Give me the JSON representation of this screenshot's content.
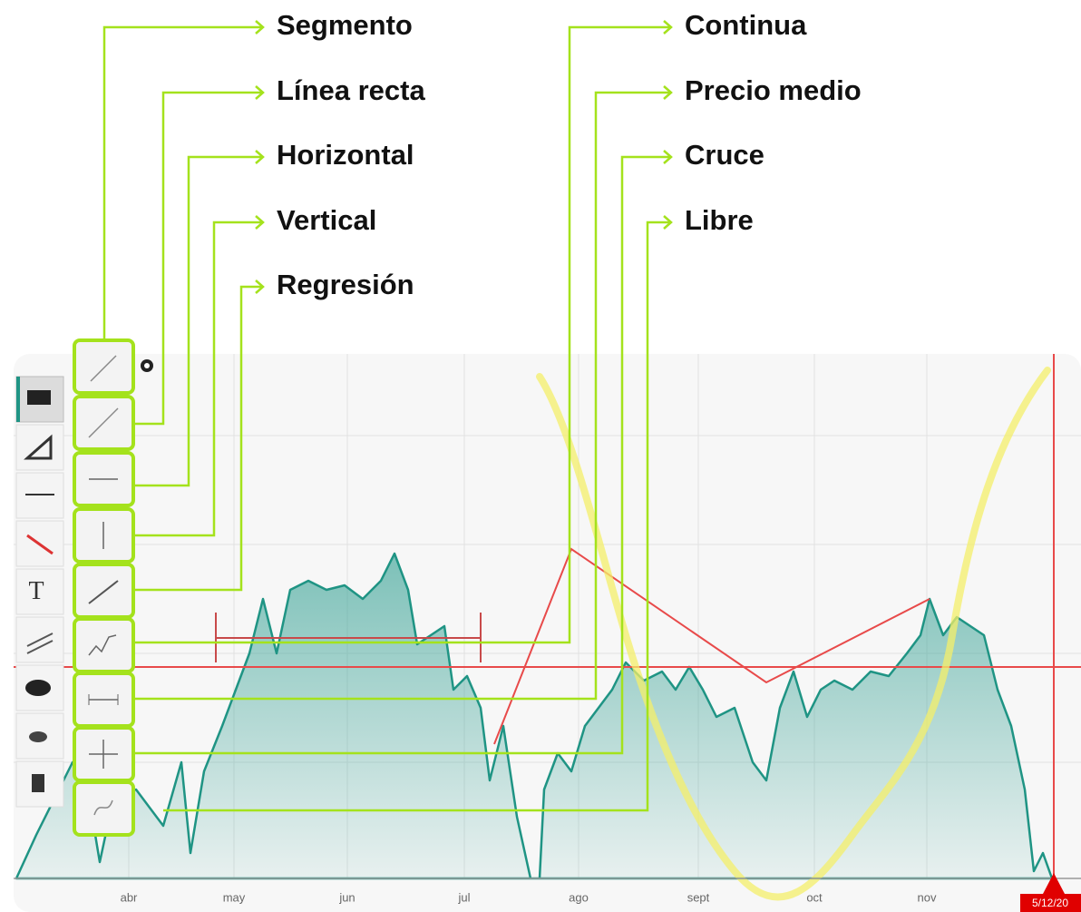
{
  "callouts_left": [
    "Segmento",
    "Línea recta",
    "Horizontal",
    "Vertical",
    "Regresión"
  ],
  "callouts_right": [
    "Continua",
    "Precio medio",
    "Cruce",
    "Libre"
  ],
  "x_axis_labels": [
    "abr",
    "may",
    "jun",
    "jul",
    "ago",
    "sept",
    "oct",
    "nov"
  ],
  "cursor_date": "5/12/20"
}
